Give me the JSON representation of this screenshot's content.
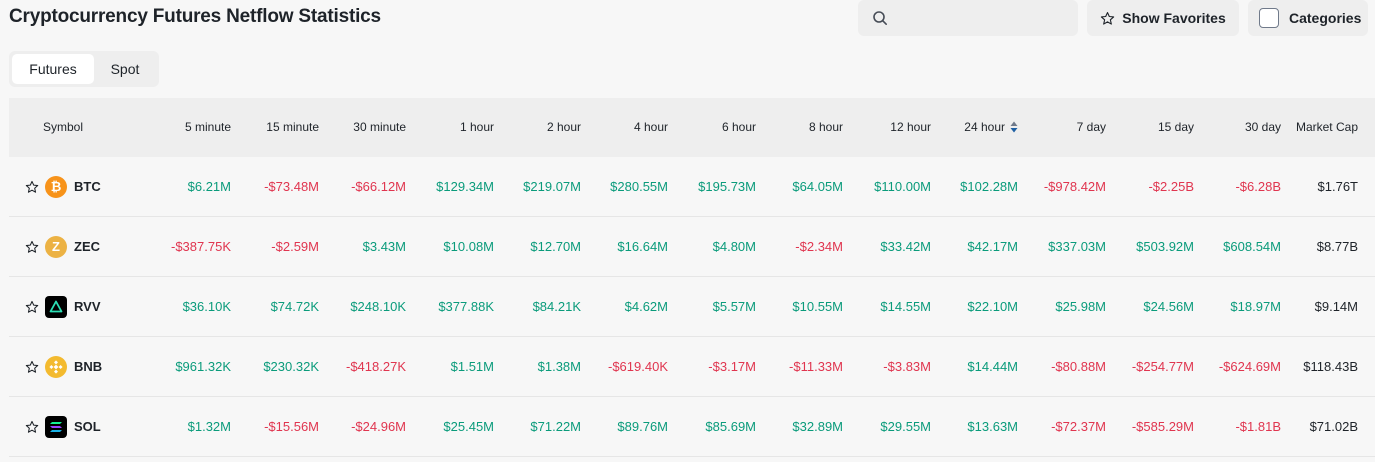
{
  "page": {
    "title": "Cryptocurrency Futures Netflow Statistics"
  },
  "search": {
    "placeholder": "",
    "value": ""
  },
  "toolbar": {
    "show_favorites": "Show Favorites",
    "categories": "Categories"
  },
  "tabs": [
    {
      "label": "Futures",
      "active": true
    },
    {
      "label": "Spot",
      "active": false
    }
  ],
  "table": {
    "columns": [
      "Symbol",
      "5 minute",
      "15 minute",
      "30 minute",
      "1 hour",
      "2 hour",
      "4 hour",
      "6 hour",
      "8 hour",
      "12 hour",
      "24 hour",
      "7 day",
      "15 day",
      "30 day",
      "Market Cap"
    ],
    "sorted_column": "24 hour",
    "rows": [
      {
        "symbol": "BTC",
        "icon": "btc-icon",
        "values": [
          "$6.21M",
          "-$73.48M",
          "-$66.12M",
          "$129.34M",
          "$219.07M",
          "$280.55M",
          "$195.73M",
          "$64.05M",
          "$110.00M",
          "$102.28M",
          "-$978.42M",
          "-$2.25B",
          "-$6.28B"
        ],
        "market_cap": "$1.76T"
      },
      {
        "symbol": "ZEC",
        "icon": "zec-icon",
        "values": [
          "-$387.75K",
          "-$2.59M",
          "$3.43M",
          "$10.08M",
          "$12.70M",
          "$16.64M",
          "$4.80M",
          "-$2.34M",
          "$33.42M",
          "$42.17M",
          "$337.03M",
          "$503.92M",
          "$608.54M"
        ],
        "market_cap": "$8.77B"
      },
      {
        "symbol": "RVV",
        "icon": "rvv-icon",
        "values": [
          "$36.10K",
          "$74.72K",
          "$248.10K",
          "$377.88K",
          "$84.21K",
          "$4.62M",
          "$5.57M",
          "$10.55M",
          "$14.55M",
          "$22.10M",
          "$25.98M",
          "$24.56M",
          "$18.97M"
        ],
        "market_cap": "$9.14M"
      },
      {
        "symbol": "BNB",
        "icon": "bnb-icon",
        "values": [
          "$961.32K",
          "$230.32K",
          "-$418.27K",
          "$1.51M",
          "$1.38M",
          "-$619.40K",
          "-$3.17M",
          "-$11.33M",
          "-$3.83M",
          "$14.44M",
          "-$80.88M",
          "-$254.77M",
          "-$624.69M"
        ],
        "market_cap": "$118.43B"
      },
      {
        "symbol": "SOL",
        "icon": "sol-icon",
        "values": [
          "$1.32M",
          "-$15.56M",
          "-$24.96M",
          "$25.45M",
          "$71.22M",
          "$89.76M",
          "$85.69M",
          "$32.89M",
          "$29.55M",
          "$13.63M",
          "-$72.37M",
          "-$585.29M",
          "-$1.81B"
        ],
        "market_cap": "$71.02B"
      }
    ]
  },
  "colors": {
    "positive": "#0a9b7b",
    "negative": "#e0354f",
    "sort_active": "#1d5fa3",
    "btc": "#f7931a",
    "zec": "#ecb244",
    "bnb": "#f3ba2f"
  }
}
